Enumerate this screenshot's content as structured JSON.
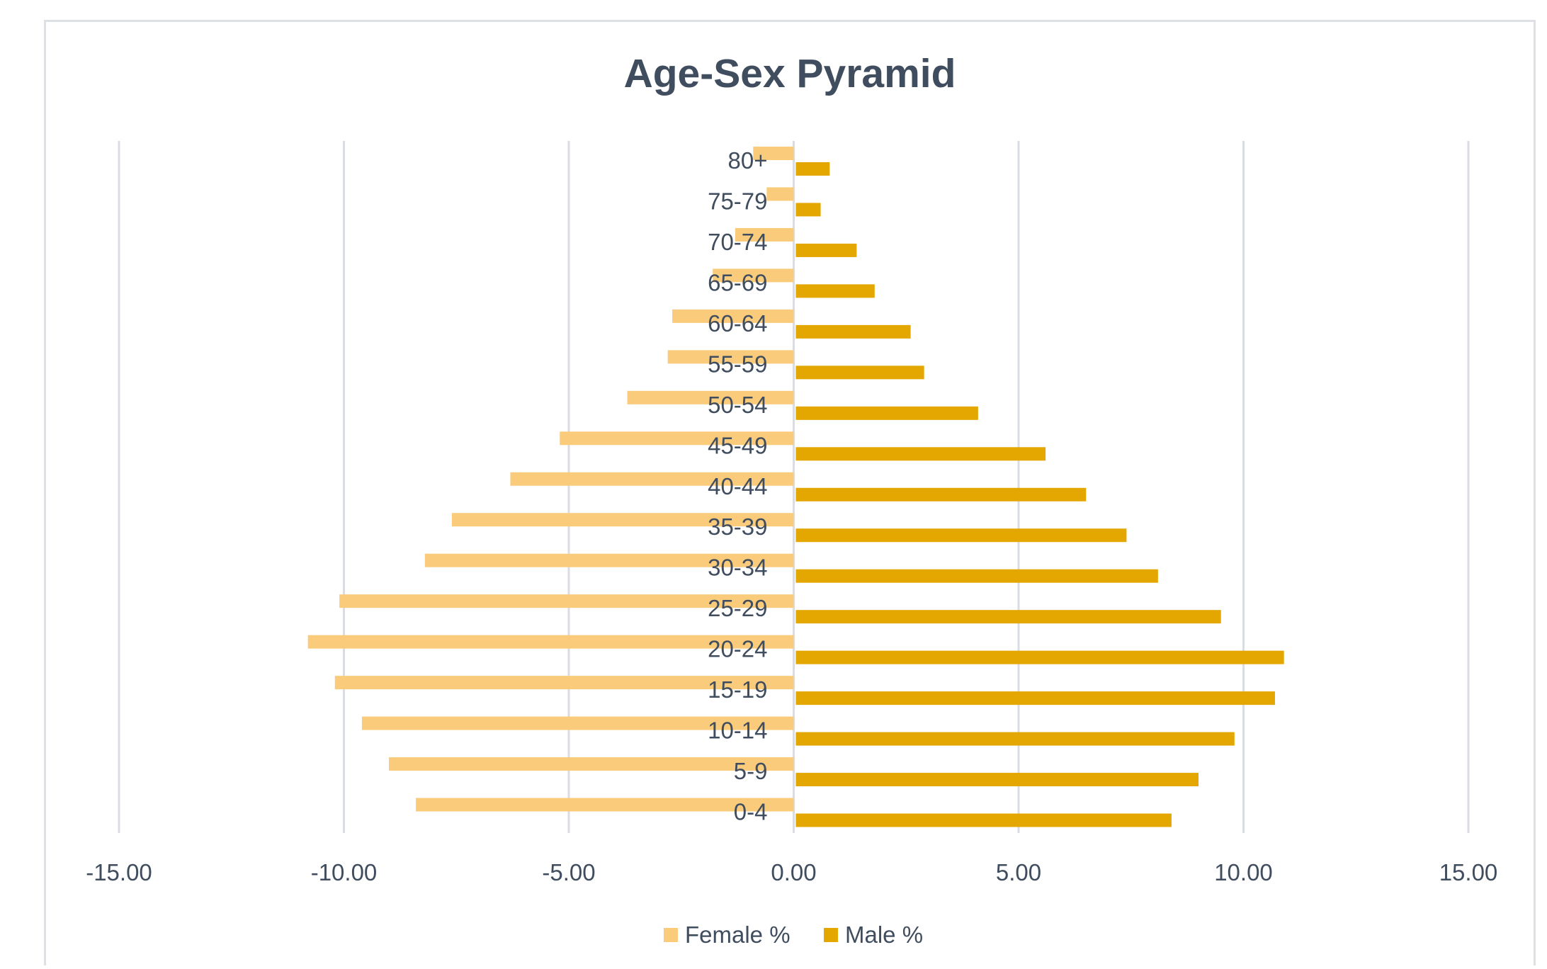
{
  "colors": {
    "female": "#f9cb7b",
    "male": "#e4a600",
    "grid": "#d9dde3",
    "text": "#404d5e"
  },
  "chart_data": {
    "type": "bar",
    "orientation": "horizontal",
    "title": "Age-Sex Pyramid",
    "xlabel": "",
    "ylabel": "",
    "xlim": [
      -15,
      15
    ],
    "x_ticks": [
      "-15.00",
      "-10.00",
      "-5.00",
      "0.00",
      "5.00",
      "10.00",
      "15.00"
    ],
    "categories": [
      "80+",
      "75-79",
      "70-74",
      "65-69",
      "60-64",
      "55-59",
      "50-54",
      "45-49",
      "40-44",
      "35-39",
      "30-34",
      "25-29",
      "20-24",
      "15-19",
      "10-14",
      "5-9",
      "0-4"
    ],
    "series": [
      {
        "name": "Female %",
        "color": "#f9cb7b",
        "values": [
          -0.9,
          -0.6,
          -1.3,
          -1.8,
          -2.7,
          -2.8,
          -3.7,
          -5.2,
          -6.3,
          -7.6,
          -8.2,
          -10.1,
          -10.8,
          -10.2,
          -9.6,
          -9.0,
          -8.4
        ]
      },
      {
        "name": "Male %",
        "color": "#e4a600",
        "values": [
          0.8,
          0.6,
          1.4,
          1.8,
          2.6,
          2.9,
          4.1,
          5.6,
          6.5,
          7.4,
          8.1,
          9.5,
          10.9,
          10.7,
          9.8,
          9.0,
          8.4
        ]
      }
    ],
    "grid": true,
    "legend": "bottom"
  }
}
